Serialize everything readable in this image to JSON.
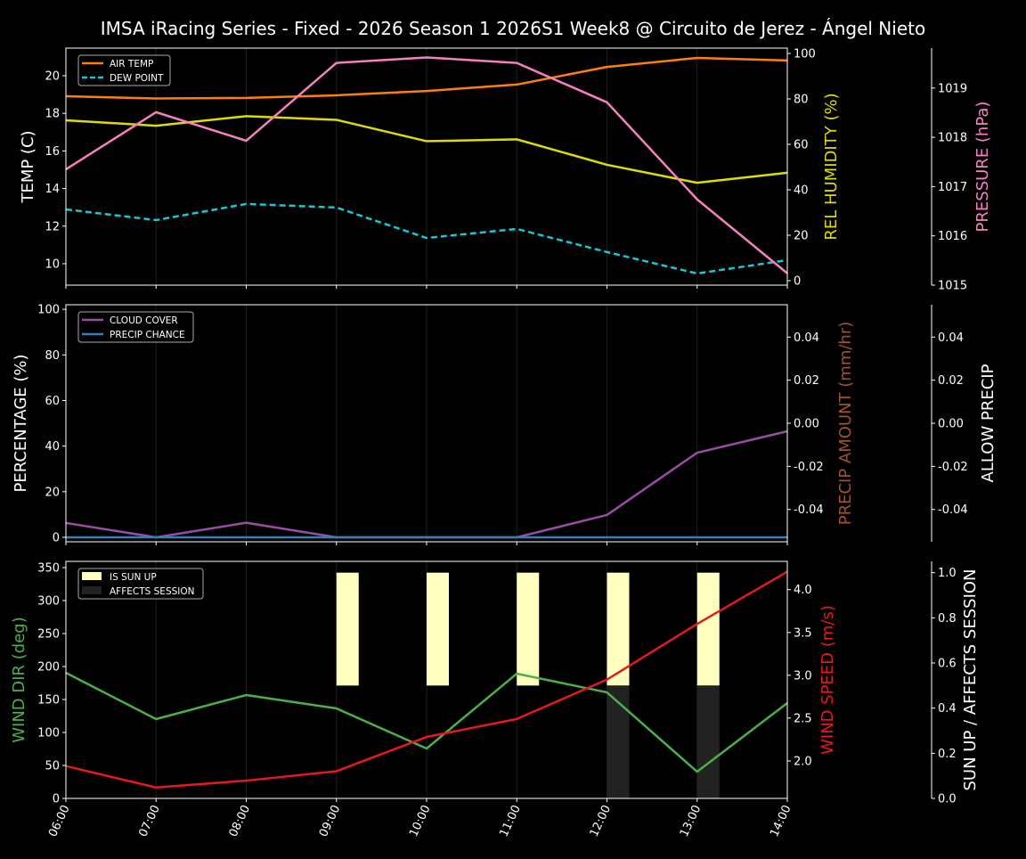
{
  "chart_data": {
    "title": "IMSA iRacing Series - Fixed - 2026 Season 1 2026S1 Week8 @ Circuito de Jerez - Ángel Nieto",
    "x_ticks": [
      "06:00",
      "07:00",
      "08:00",
      "09:00",
      "10:00",
      "11:00",
      "12:00",
      "13:00",
      "14:00"
    ],
    "grid": "vertical lines at each hour",
    "panels": [
      {
        "type": "line",
        "left_axis": {
          "label": "TEMP (C)",
          "ylim": [
            8.86,
            21.47
          ],
          "ticks": [
            10,
            12,
            14,
            16,
            18,
            20
          ],
          "color": "#ffffff"
        },
        "right_axis": {
          "label": "REL HUMIDITY (%)",
          "ylim": [
            -1.96,
            102.35
          ],
          "ticks": [
            0,
            20,
            40,
            60,
            80,
            100
          ],
          "color": "#dddd00"
        },
        "third_axis": {
          "label": "PRESSURE (hPa)",
          "ylim": [
            1015,
            1019.81
          ],
          "ticks": [
            1015,
            1016,
            1017,
            1018,
            1019
          ],
          "color": "#f781bf"
        },
        "legend": {
          "placement": "top-left",
          "entries": [
            "AIR TEMP",
            "DEW POINT"
          ]
        },
        "series": [
          {
            "name": "AIR TEMP",
            "axis": "left",
            "color": "#ff7f0e",
            "style": "solid",
            "values": [
              18.91,
              18.79,
              18.82,
              18.96,
              19.19,
              19.53,
              20.47,
              20.95,
              20.81
            ]
          },
          {
            "name": "DEW POINT",
            "axis": "left",
            "color": "#17c7d2",
            "style": "dashed",
            "values": [
              12.89,
              12.32,
              13.18,
              12.99,
              11.37,
              11.85,
              10.62,
              9.48,
              10.19
            ]
          },
          {
            "axis": "right",
            "color": "#dddd00",
            "style": "solid",
            "values": [
              70.6,
              68.2,
              72.4,
              70.8,
              61.4,
              62.2,
              51.0,
              43.1,
              47.5
            ]
          },
          {
            "axis": "third",
            "color": "#f781bf",
            "style": "solid",
            "values": [
              1017.35,
              1018.51,
              1017.93,
              1019.51,
              1019.62,
              1019.51,
              1018.71,
              1016.74,
              1015.24
            ]
          }
        ]
      },
      {
        "type": "line",
        "left_axis": {
          "label": "PERCENTAGE (%)",
          "ylim": [
            -1.95,
            102
          ],
          "ticks": [
            0,
            20,
            40,
            60,
            80,
            100
          ],
          "color": "#ffffff"
        },
        "right_axis": {
          "label": "PRECIP AMOUNT (mm/hr)",
          "ylim": [
            -0.055,
            0.055
          ],
          "ticks": [
            -0.04,
            -0.02,
            0.0,
            0.02,
            0.04
          ],
          "color": "#a0522d"
        },
        "third_axis": {
          "label": "ALLOW PRECIP",
          "ylim": [
            -0.055,
            0.055
          ],
          "ticks": [
            -0.04,
            -0.02,
            0.0,
            0.02,
            0.04
          ],
          "color": "#ffffff"
        },
        "legend": {
          "placement": "top-left",
          "entries": [
            "CLOUD COVER",
            "PRECIP CHANCE"
          ]
        },
        "series": [
          {
            "name": "CLOUD COVER",
            "axis": "left",
            "color": "#984ea3",
            "style": "solid",
            "values": [
              6.3,
              0,
              6.4,
              0,
              0,
              0,
              9.8,
              37.1,
              46.5
            ]
          },
          {
            "name": "PRECIP CHANCE",
            "axis": "left",
            "color": "#377eb8",
            "style": "solid",
            "values": [
              0,
              0,
              0,
              0,
              0,
              0,
              0,
              0,
              0
            ]
          }
        ]
      },
      {
        "type": "line+bar",
        "left_axis": {
          "label": "WIND DIR (deg)",
          "ylim": [
            0,
            359.5
          ],
          "ticks": [
            0,
            50,
            100,
            150,
            200,
            250,
            300,
            350
          ],
          "color": "#4daf4a"
        },
        "right_axis": {
          "label": "WIND SPEED (m/s)",
          "ylim": [
            1.5625,
            4.33
          ],
          "ticks": [
            2.0,
            2.5,
            3.0,
            3.5,
            4.0
          ],
          "color": "#e41a1c"
        },
        "third_axis": {
          "label": "SUN UP / AFFECTS SESSION",
          "ylim": [
            0,
            1.05
          ],
          "ticks": [
            0.0,
            0.2,
            0.4,
            0.6,
            0.8,
            1.0
          ],
          "color": "#ffffff"
        },
        "legend": {
          "placement": "top-left",
          "entries": [
            "IS SUN UP",
            "AFFECTS SESSION"
          ]
        },
        "series": [
          {
            "axis": "left",
            "color": "#4daf4a",
            "style": "solid",
            "values": [
              190.5,
              120.3,
              156.8,
              136.5,
              75.7,
              189.2,
              160.8,
              40.5,
              144.6
            ]
          },
          {
            "axis": "right",
            "color": "#e41a1c",
            "style": "solid",
            "values": [
              1.94,
              1.69,
              1.77,
              1.88,
              2.28,
              2.49,
              2.95,
              3.6,
              4.21
            ]
          }
        ],
        "bars": [
          {
            "name": "IS SUN UP",
            "axis": "third",
            "color": "#ffffc0",
            "range": [
              0.5,
              1.0
            ],
            "values": [
              0,
              0,
              0,
              1,
              1,
              1,
              1,
              1
            ]
          },
          {
            "name": "AFFECTS SESSION",
            "axis": "third",
            "color": "#222222",
            "range": [
              0,
              0.5
            ],
            "values": [
              0,
              0,
              0,
              0,
              0,
              0,
              1,
              1
            ]
          }
        ]
      }
    ]
  }
}
